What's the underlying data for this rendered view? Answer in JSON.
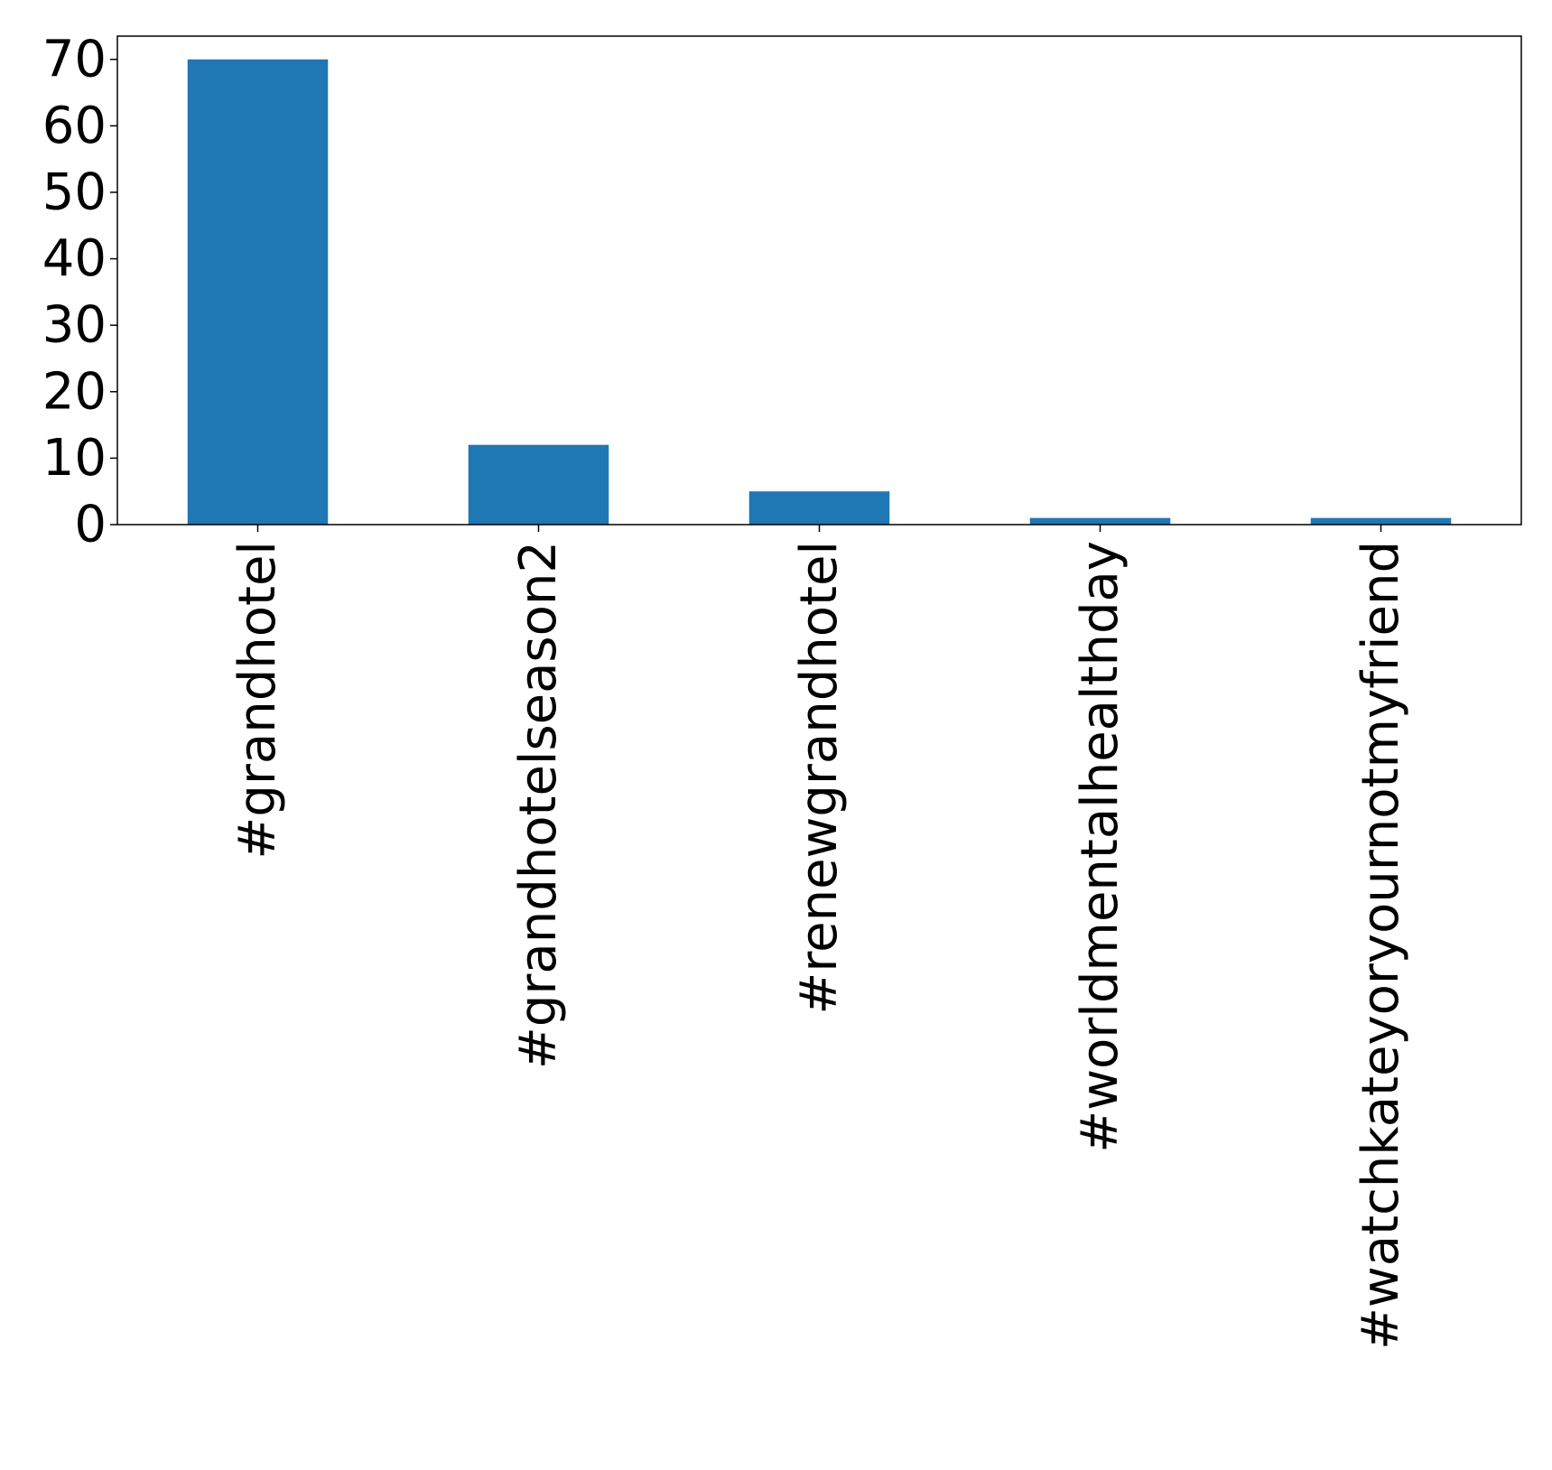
{
  "chart_data": {
    "type": "bar",
    "categories": [
      "#grandhotel",
      "#grandhotelseason2",
      "#renewgrandhotel",
      "#worldmentalhealthday",
      "#watchkateyoryournotmyfriend"
    ],
    "values": [
      70,
      12,
      5,
      1,
      1
    ],
    "title": "",
    "xlabel": "",
    "ylabel": "",
    "ylim": [
      0,
      73.5
    ],
    "yticks": [
      0,
      10,
      20,
      30,
      40,
      50,
      60,
      70
    ],
    "ytick_labels": [
      "0",
      "10",
      "20",
      "30",
      "40",
      "50",
      "60",
      "70"
    ],
    "grid": false,
    "bar_color": "#1f77b4",
    "x_label_rotation": "vertical"
  }
}
